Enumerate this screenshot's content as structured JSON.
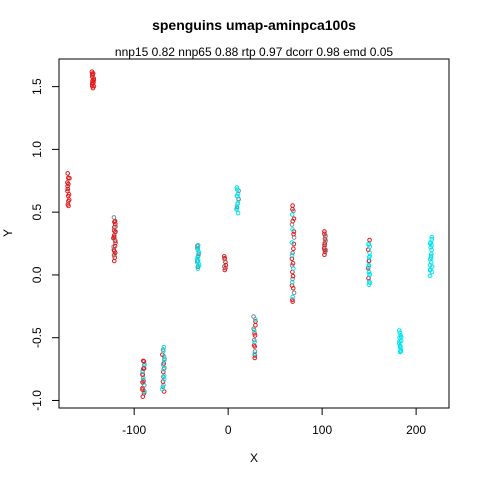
{
  "chart_data": {
    "type": "scatter",
    "title": "spenguins umap-aminpca100s",
    "subtitle": "nnp15 0.82 nnp65 0.88 rtp 0.97 dcorr 0.98 emd 0.05",
    "xlabel": "X",
    "ylabel": "Y",
    "xlim": [
      -180,
      235
    ],
    "ylim": [
      -1.06,
      1.72
    ],
    "x_ticks": [
      -100,
      0,
      100,
      200
    ],
    "y_ticks": [
      -1.0,
      -0.5,
      0.0,
      0.5,
      1.0,
      1.5
    ],
    "x_tick_labels": [
      "-100",
      "0",
      "100",
      "200"
    ],
    "y_tick_labels": [
      "-1.0",
      "-0.5",
      "0.0",
      "0.5",
      "1.0",
      "1.5"
    ],
    "colors": {
      "red": "#e31a1c",
      "cyan": "#00e5ee",
      "gray": "#7a8a90"
    },
    "clusters": [
      {
        "x": -170,
        "y_min": 0.55,
        "y_max": 0.8,
        "n": 14,
        "colors": [
          "red"
        ]
      },
      {
        "x": -144,
        "y_min": 1.49,
        "y_max": 1.62,
        "n": 14,
        "colors": [
          "red"
        ]
      },
      {
        "x": -121,
        "y_min": 0.12,
        "y_max": 0.45,
        "n": 24,
        "colors": [
          "red",
          "red",
          "red",
          "gray"
        ]
      },
      {
        "x": -90,
        "y_min": -0.96,
        "y_max": -0.68,
        "n": 22,
        "colors": [
          "red",
          "red",
          "gray",
          "cyan"
        ]
      },
      {
        "x": -69,
        "y_min": -0.92,
        "y_max": -0.58,
        "n": 20,
        "colors": [
          "red",
          "cyan",
          "gray",
          "cyan"
        ]
      },
      {
        "x": -32,
        "y_min": 0.05,
        "y_max": 0.24,
        "n": 18,
        "colors": [
          "cyan",
          "cyan",
          "gray"
        ]
      },
      {
        "x": -3,
        "y_min": 0.04,
        "y_max": 0.15,
        "n": 8,
        "colors": [
          "red",
          "red",
          "gray"
        ]
      },
      {
        "x": 10,
        "y_min": 0.5,
        "y_max": 0.7,
        "n": 14,
        "colors": [
          "cyan",
          "cyan",
          "cyan",
          "gray"
        ]
      },
      {
        "x": 28,
        "y_min": -0.67,
        "y_max": -0.33,
        "n": 16,
        "colors": [
          "red",
          "red",
          "cyan",
          "gray"
        ]
      },
      {
        "x": 69,
        "y_min": -0.22,
        "y_max": 0.56,
        "n": 30,
        "colors": [
          "red",
          "red",
          "cyan",
          "gray"
        ]
      },
      {
        "x": 103,
        "y_min": 0.17,
        "y_max": 0.34,
        "n": 14,
        "colors": [
          "red",
          "red",
          "gray"
        ]
      },
      {
        "x": 150,
        "y_min": -0.08,
        "y_max": 0.27,
        "n": 20,
        "colors": [
          "cyan",
          "cyan",
          "cyan",
          "red"
        ]
      },
      {
        "x": 183,
        "y_min": -0.62,
        "y_max": -0.45,
        "n": 14,
        "colors": [
          "cyan"
        ]
      },
      {
        "x": 216,
        "y_min": 0.0,
        "y_max": 0.3,
        "n": 18,
        "colors": [
          "cyan"
        ]
      }
    ]
  }
}
